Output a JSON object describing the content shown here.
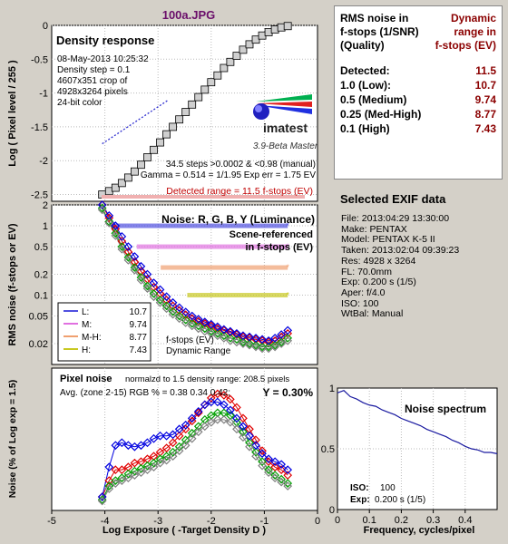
{
  "file_title": "100a.JPG",
  "density_panel": {
    "title": "Density response",
    "info_lines": [
      "08-May-2013 10:25:32",
      "Density step = 0.1",
      "4607x351 crop of",
      "4928x3264 pixels",
      "24-bit color"
    ],
    "logo_text": "imatest",
    "version": "3.9-Beta  Master",
    "stats_line1": "34.5 steps >0.0002 & <0.98 (manual)",
    "stats_line2": "Gamma = 0.514 = 1/1.95  Exp err = 1.75 EV",
    "detected_range": "Detected range = 11.5 f-stops (EV)",
    "ylabel": "Log ( Pixel level / 255 )"
  },
  "noise_panel": {
    "title": "Noise: R, G, B, Y (Luminance)",
    "subtitle1": "Scene-referenced",
    "subtitle2": "in f-stops (EV)",
    "ylabel": "RMS noise (f-stops or EV)",
    "legend": [
      {
        "key": "L:",
        "value": "10.7",
        "color": "#5050e0"
      },
      {
        "key": "M:",
        "value": "9.74",
        "color": "#e070e0"
      },
      {
        "key": "M-H:",
        "value": "8.77",
        "color": "#f0a070"
      },
      {
        "key": "H:",
        "value": "7.43",
        "color": "#c8c820"
      }
    ],
    "legend_note1": "f-stops (EV)",
    "legend_note2": "Dynamic Range"
  },
  "pixel_panel": {
    "title": "Pixel noise",
    "norm_text": "normalzd to 1.5 density range: 208.5 pixels",
    "avg_text": "Avg. (zone 2-15) RGB % = 0.38  0.34  0.42;",
    "y_text": "Y = 0.30%",
    "ylabel": "Noise (% of Log exp = 1.5)",
    "xlabel": "Log Exposure ( -Target Density D )"
  },
  "spectrum_panel": {
    "title": "Noise spectrum",
    "iso_label": "ISO:",
    "iso_value": "100",
    "exp_label": "Exp:",
    "exp_value": "0.200 s   (1/5)",
    "xlabel": "Frequency, cycles/pixel"
  },
  "dynamic_range": {
    "header_left": [
      "RMS noise in",
      "f-stops (1/SNR)",
      "(Quality)"
    ],
    "header_right": [
      "Dynamic",
      "range in",
      "f-stops (EV)"
    ],
    "rows": [
      {
        "label": "Detected:",
        "value": "11.5"
      },
      {
        "label": "1.0  (Low):",
        "value": "10.7"
      },
      {
        "label": "0.5  (Medium)",
        "value": "9.74"
      },
      {
        "label": "0.25 (Med-High)",
        "value": "8.77"
      },
      {
        "label": "0.1   (High)",
        "value": "7.43"
      }
    ]
  },
  "exif": {
    "title": "Selected EXIF data",
    "lines": [
      "File:  2013:04:29 13:30:00",
      "Make:  PENTAX",
      "Model: PENTAX K-5 II",
      "Taken:  2013:02:04 09:39:23",
      "Res:    4928 x 3264",
      "FL:  70.0mm",
      "Exp:   0.200 s  (1/5)",
      "Aper:  f/4.0",
      "ISO:    100",
      "WtBal: Manual"
    ]
  },
  "colors": {
    "red": "#e00000",
    "green": "#00a000",
    "blue": "#0000e0",
    "gray": "#808080"
  },
  "chart_data": [
    {
      "type": "scatter",
      "name": "density-response",
      "xlim": [
        -5,
        0
      ],
      "ylim": [
        -2.6,
        0
      ],
      "yticks": [
        0,
        -0.5,
        -1,
        -1.5,
        -2,
        -2.5
      ],
      "ytick_labels": [
        "0",
        "-0.5",
        "-1",
        "-1.5",
        "-2",
        "-2.5"
      ],
      "x": [
        -4.05,
        -3.92,
        -3.8,
        -3.68,
        -3.56,
        -3.44,
        -3.32,
        -3.2,
        -3.08,
        -2.96,
        -2.84,
        -2.72,
        -2.6,
        -2.48,
        -2.36,
        -2.24,
        -2.12,
        -2.0,
        -1.88,
        -1.76,
        -1.64,
        -1.52,
        -1.4,
        -1.28,
        -1.16,
        -1.04,
        -0.92,
        -0.8,
        -0.68,
        -0.56
      ],
      "y": [
        -2.5,
        -2.45,
        -2.4,
        -2.33,
        -2.25,
        -2.16,
        -2.06,
        -1.95,
        -1.84,
        -1.73,
        -1.61,
        -1.5,
        -1.39,
        -1.28,
        -1.17,
        -1.06,
        -0.95,
        -0.84,
        -0.74,
        -0.63,
        -0.54,
        -0.45,
        -0.36,
        -0.28,
        -0.21,
        -0.15,
        -0.1,
        -0.06,
        -0.03,
        -0.01
      ],
      "fit_line": {
        "x": [
          -4.05,
          -2.8
        ],
        "y": [
          -1.75,
          -1.1
        ]
      }
    },
    {
      "type": "scatter",
      "name": "rms-noise-fstops",
      "xlim": [
        -5,
        0
      ],
      "yscale": "log",
      "ylim": [
        0.01,
        2
      ],
      "yticks": [
        2,
        1,
        0.5,
        0.2,
        0.1,
        0.05,
        0.02
      ],
      "ytick_labels": [
        "2",
        "1",
        "0.5",
        "0.2",
        "0.1",
        "0.05",
        "0.02"
      ],
      "x": [
        -4.05,
        -3.92,
        -3.8,
        -3.68,
        -3.56,
        -3.44,
        -3.32,
        -3.2,
        -3.08,
        -2.96,
        -2.84,
        -2.72,
        -2.6,
        -2.48,
        -2.36,
        -2.24,
        -2.12,
        -2.0,
        -1.88,
        -1.76,
        -1.64,
        -1.52,
        -1.4,
        -1.28,
        -1.16,
        -1.04,
        -0.92,
        -0.8,
        -0.68,
        -0.56
      ],
      "series": [
        {
          "name": "R",
          "values": [
            2.0,
            1.3,
            0.9,
            0.6,
            0.42,
            0.3,
            0.22,
            0.17,
            0.13,
            0.105,
            0.085,
            0.07,
            0.06,
            0.052,
            0.046,
            0.042,
            0.039,
            0.036,
            0.033,
            0.031,
            0.029,
            0.027,
            0.025,
            0.024,
            0.023,
            0.022,
            0.021,
            0.022,
            0.025,
            0.028
          ]
        },
        {
          "name": "G",
          "values": [
            1.8,
            1.15,
            0.78,
            0.5,
            0.35,
            0.25,
            0.18,
            0.135,
            0.105,
            0.085,
            0.07,
            0.058,
            0.05,
            0.044,
            0.039,
            0.036,
            0.033,
            0.03,
            0.028,
            0.026,
            0.024,
            0.023,
            0.021,
            0.02,
            0.019,
            0.018,
            0.018,
            0.019,
            0.021,
            0.024
          ]
        },
        {
          "name": "B",
          "values": [
            2.0,
            1.4,
            1.0,
            0.7,
            0.5,
            0.36,
            0.26,
            0.2,
            0.15,
            0.12,
            0.095,
            0.078,
            0.066,
            0.057,
            0.05,
            0.045,
            0.041,
            0.038,
            0.035,
            0.032,
            0.03,
            0.028,
            0.026,
            0.025,
            0.024,
            0.023,
            0.022,
            0.024,
            0.027,
            0.031
          ]
        },
        {
          "name": "Y",
          "values": [
            1.7,
            1.1,
            0.72,
            0.46,
            0.32,
            0.23,
            0.165,
            0.125,
            0.095,
            0.078,
            0.064,
            0.053,
            0.046,
            0.04,
            0.036,
            0.033,
            0.03,
            0.028,
            0.026,
            0.024,
            0.022,
            0.021,
            0.02,
            0.019,
            0.018,
            0.017,
            0.017,
            0.018,
            0.02,
            0.022
          ]
        }
      ],
      "thresholds": [
        {
          "level": 1.0,
          "x_start": -3.88,
          "label_ev": "10.7"
        },
        {
          "level": 0.5,
          "x_start": -3.4,
          "label_ev": "9.74"
        },
        {
          "level": 0.25,
          "x_start": -2.95,
          "label_ev": "8.77"
        },
        {
          "level": 0.1,
          "x_start": -2.45,
          "label_ev": "7.43"
        }
      ]
    },
    {
      "type": "scatter",
      "name": "pixel-noise",
      "xlim": [
        -5,
        0
      ],
      "xticks": [
        -5,
        -4,
        -3,
        -2,
        -1,
        0
      ],
      "xtick_labels": [
        "-5",
        "-4",
        "-3",
        "-2",
        "-1",
        "0"
      ],
      "ylim": [
        0,
        1.05
      ],
      "x": [
        -4.05,
        -3.92,
        -3.8,
        -3.68,
        -3.56,
        -3.44,
        -3.32,
        -3.2,
        -3.08,
        -2.96,
        -2.84,
        -2.72,
        -2.6,
        -2.48,
        -2.36,
        -2.24,
        -2.12,
        -2.0,
        -1.88,
        -1.76,
        -1.64,
        -1.52,
        -1.4,
        -1.28,
        -1.16,
        -1.04,
        -0.92,
        -0.8,
        -0.68,
        -0.56
      ],
      "series": [
        {
          "name": "R",
          "values": [
            0.1,
            0.22,
            0.3,
            0.3,
            0.32,
            0.35,
            0.36,
            0.38,
            0.4,
            0.43,
            0.46,
            0.5,
            0.55,
            0.6,
            0.66,
            0.72,
            0.78,
            0.83,
            0.86,
            0.85,
            0.82,
            0.76,
            0.68,
            0.6,
            0.52,
            0.44,
            0.36,
            0.32,
            0.3,
            0.26
          ]
        },
        {
          "name": "G",
          "values": [
            0.08,
            0.18,
            0.22,
            0.24,
            0.27,
            0.29,
            0.31,
            0.33,
            0.35,
            0.38,
            0.4,
            0.43,
            0.47,
            0.52,
            0.57,
            0.62,
            0.67,
            0.7,
            0.72,
            0.72,
            0.7,
            0.65,
            0.58,
            0.5,
            0.43,
            0.36,
            0.3,
            0.26,
            0.23,
            0.2
          ]
        },
        {
          "name": "B",
          "values": [
            0.1,
            0.32,
            0.48,
            0.5,
            0.48,
            0.47,
            0.48,
            0.5,
            0.53,
            0.55,
            0.55,
            0.56,
            0.6,
            0.63,
            0.68,
            0.73,
            0.78,
            0.8,
            0.8,
            0.78,
            0.74,
            0.68,
            0.62,
            0.55,
            0.48,
            0.42,
            0.38,
            0.36,
            0.34,
            0.3
          ]
        },
        {
          "name": "Y",
          "values": [
            0.07,
            0.16,
            0.2,
            0.22,
            0.24,
            0.26,
            0.28,
            0.3,
            0.32,
            0.35,
            0.37,
            0.4,
            0.44,
            0.48,
            0.53,
            0.58,
            0.62,
            0.65,
            0.67,
            0.67,
            0.65,
            0.6,
            0.54,
            0.47,
            0.4,
            0.33,
            0.28,
            0.24,
            0.21,
            0.18
          ]
        }
      ]
    },
    {
      "type": "line",
      "name": "noise-spectrum",
      "xlim": [
        0,
        0.5
      ],
      "xticks": [
        0,
        0.1,
        0.2,
        0.3,
        0.4
      ],
      "xtick_labels": [
        "0",
        "0.1",
        "0.2",
        "0.3",
        "0.4"
      ],
      "ylim": [
        0,
        1
      ],
      "yticks": [
        0,
        0.5,
        1
      ],
      "ytick_labels": [
        "0",
        "0.5",
        "1"
      ],
      "x": [
        0,
        0.02,
        0.04,
        0.06,
        0.08,
        0.1,
        0.12,
        0.14,
        0.16,
        0.18,
        0.2,
        0.22,
        0.24,
        0.26,
        0.28,
        0.3,
        0.32,
        0.34,
        0.36,
        0.38,
        0.4,
        0.42,
        0.44,
        0.46,
        0.48,
        0.5
      ],
      "y": [
        0.96,
        0.98,
        0.93,
        0.91,
        0.88,
        0.86,
        0.85,
        0.82,
        0.8,
        0.78,
        0.75,
        0.73,
        0.71,
        0.69,
        0.66,
        0.64,
        0.62,
        0.6,
        0.57,
        0.55,
        0.52,
        0.5,
        0.49,
        0.47,
        0.47,
        0.46
      ]
    }
  ]
}
